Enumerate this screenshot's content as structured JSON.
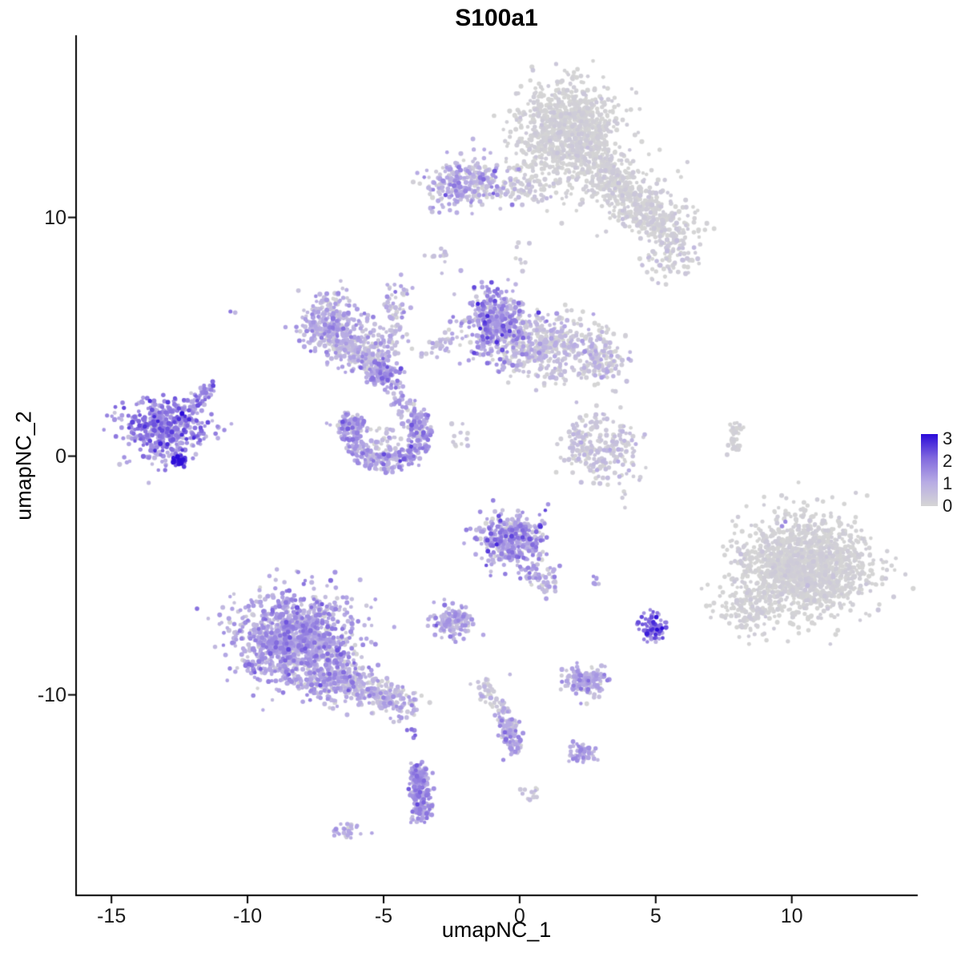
{
  "chart_data": {
    "type": "scatter",
    "title": "S100a1",
    "xlabel": "umapNC_1",
    "ylabel": "umapNC_2",
    "x_ticks": [
      -15,
      -10,
      -5,
      0,
      5,
      10
    ],
    "y_ticks": [
      10,
      0,
      -10
    ],
    "x_domain": [
      -16.3,
      14.6
    ],
    "y_domain": [
      -18.4,
      17.6
    ],
    "grid": false,
    "background": "#ffffff",
    "axis_color": "#000000",
    "point_color_scale": {
      "domain": [
        0,
        3
      ],
      "stops": [
        "#D5D5D5",
        "#B7ABE4",
        "#8169DE",
        "#2B0BD9"
      ]
    },
    "legend": {
      "position": "right",
      "ticks": [
        "3",
        "2",
        "1",
        "0"
      ]
    },
    "seed": 42,
    "clusters": [
      {
        "t": "g",
        "cx": 1.8,
        "cy": 13.8,
        "sx": 0.85,
        "sy": 0.9,
        "n": 850,
        "e": 0.05,
        "es": 0.13
      },
      {
        "t": "s",
        "x1": 2.5,
        "y1": 12.5,
        "x2": 4.3,
        "y2": 10.7,
        "j": 0.5,
        "n": 280,
        "e": 0.06,
        "es": 0.16
      },
      {
        "t": "g",
        "cx": 4.7,
        "cy": 10.2,
        "sx": 0.55,
        "sy": 0.5,
        "n": 150,
        "e": 0.06,
        "es": 0.16
      },
      {
        "t": "s",
        "x1": 4.9,
        "y1": 9.8,
        "x2": 6.1,
        "y2": 8.9,
        "j": 0.38,
        "n": 110,
        "e": 0.07,
        "es": 0.2
      },
      {
        "t": "g",
        "cx": 5.4,
        "cy": 8.1,
        "sx": 0.5,
        "sy": 0.45,
        "n": 60,
        "e": 0.1,
        "es": 0.3
      },
      {
        "t": "g",
        "cx": 3.0,
        "cy": 11.6,
        "sx": 1.2,
        "sy": 0.9,
        "n": 110,
        "e": 0.05,
        "es": 0.15
      },
      {
        "t": "g",
        "cx": 0.7,
        "cy": 12.4,
        "sx": 0.6,
        "sy": 0.7,
        "n": 70,
        "e": 0.05,
        "es": 0.12
      },
      {
        "t": "g",
        "cx": 6.3,
        "cy": 9.7,
        "sx": 0.4,
        "sy": 0.45,
        "n": 18,
        "e": 0.06,
        "es": 0.15
      },
      {
        "t": "g",
        "cx": -1.9,
        "cy": 11.4,
        "sx": 0.78,
        "sy": 0.5,
        "n": 300,
        "e": 0.7,
        "es": 0.55
      },
      {
        "t": "s",
        "x1": -0.6,
        "y1": 11.3,
        "x2": 1.1,
        "y2": 11.0,
        "j": 0.25,
        "n": 55,
        "e": 0.2,
        "es": 0.25
      },
      {
        "t": "g",
        "cx": -3.0,
        "cy": 8.4,
        "sx": 0.22,
        "sy": 0.3,
        "n": 11,
        "e": 0.5,
        "es": 0.3
      },
      {
        "t": "g",
        "cx": 0.0,
        "cy": 8.3,
        "sx": 0.14,
        "sy": 0.3,
        "n": 8,
        "e": 0.3,
        "es": 0.25
      },
      {
        "t": "g",
        "cx": -10.5,
        "cy": 6.1,
        "sx": 0.1,
        "sy": 0.1,
        "n": 2,
        "e": 1.4,
        "es": 0.3
      },
      {
        "t": "g",
        "cx": -7.0,
        "cy": 5.4,
        "sx": 0.58,
        "sy": 0.5,
        "n": 260,
        "e": 0.8,
        "es": 0.5
      },
      {
        "t": "g",
        "cx": -5.9,
        "cy": 4.4,
        "sx": 0.55,
        "sy": 0.45,
        "n": 210,
        "e": 0.6,
        "es": 0.45
      },
      {
        "t": "g",
        "cx": -5.0,
        "cy": 3.5,
        "sx": 0.32,
        "sy": 0.3,
        "n": 140,
        "e": 1.1,
        "es": 0.5
      },
      {
        "t": "s",
        "x1": -4.7,
        "y1": 4.2,
        "x2": -4.5,
        "y2": 7.3,
        "j": 0.24,
        "n": 90,
        "e": 0.55,
        "es": 0.4
      },
      {
        "t": "s",
        "x1": -7.4,
        "y1": 6.1,
        "x2": -6.5,
        "y2": 6.8,
        "j": 0.25,
        "n": 40,
        "e": 0.6,
        "es": 0.4
      },
      {
        "t": "s",
        "x1": -4.6,
        "y1": 2.9,
        "x2": -3.9,
        "y2": 1.2,
        "j": 0.24,
        "n": 60,
        "e": 0.9,
        "es": 0.5
      },
      {
        "t": "g",
        "cx": -0.9,
        "cy": 5.5,
        "sx": 0.62,
        "sy": 0.72,
        "n": 420,
        "e": 1.0,
        "es": 0.6
      },
      {
        "t": "g",
        "cx": 0.9,
        "cy": 4.6,
        "sx": 0.9,
        "sy": 0.62,
        "n": 430,
        "e": 0.32,
        "es": 0.38
      },
      {
        "t": "g",
        "cx": 3.0,
        "cy": 4.0,
        "sx": 0.5,
        "sy": 0.5,
        "n": 130,
        "e": 0.35,
        "es": 0.4
      },
      {
        "t": "s",
        "x1": -2.3,
        "y1": 5.0,
        "x2": -3.4,
        "y2": 4.3,
        "j": 0.22,
        "n": 26,
        "e": 0.5,
        "es": 0.35
      },
      {
        "t": "g",
        "cx": -13.1,
        "cy": 1.2,
        "sx": 0.78,
        "sy": 0.65,
        "n": 460,
        "e": 1.4,
        "es": 0.55
      },
      {
        "t": "s",
        "x1": -12.2,
        "y1": 2.0,
        "x2": -11.4,
        "y2": 2.8,
        "j": 0.22,
        "n": 50,
        "e": 1.2,
        "es": 0.5
      },
      {
        "t": "g",
        "cx": -12.5,
        "cy": -0.1,
        "sx": 0.16,
        "sy": 0.14,
        "n": 26,
        "e": 2.5,
        "es": 0.35
      },
      {
        "t": "a",
        "cx": -4.9,
        "cy": 1.0,
        "r1": 0.9,
        "r2": 1.7,
        "a1": 150,
        "a2": 395,
        "n": 360,
        "e": 1.05,
        "es": 0.5
      },
      {
        "t": "g",
        "cx": -6.2,
        "cy": 1.4,
        "sx": 0.3,
        "sy": 0.3,
        "n": 45,
        "e": 0.8,
        "es": 0.45
      },
      {
        "t": "g",
        "cx": -4.9,
        "cy": 0.6,
        "sx": 0.5,
        "sy": 0.4,
        "n": 50,
        "e": 0.6,
        "es": 0.4
      },
      {
        "t": "g",
        "cx": -2.1,
        "cy": 0.7,
        "sx": 0.3,
        "sy": 0.25,
        "n": 12,
        "e": 0.3,
        "es": 0.25
      },
      {
        "t": "g",
        "cx": 3.1,
        "cy": 0.3,
        "sx": 0.68,
        "sy": 0.8,
        "n": 200,
        "e": 0.25,
        "es": 0.3
      },
      {
        "t": "s",
        "x1": 2.2,
        "y1": 1.6,
        "x2": 2.0,
        "y2": -0.4,
        "j": 0.18,
        "n": 45,
        "e": 0.3,
        "es": 0.3
      },
      {
        "t": "s",
        "x1": 7.8,
        "y1": 0.2,
        "x2": 8.0,
        "y2": 1.3,
        "j": 0.13,
        "n": 40,
        "e": 0.05,
        "es": 0.1
      },
      {
        "t": "g",
        "cx": -0.3,
        "cy": -3.5,
        "sx": 0.62,
        "sy": 0.58,
        "n": 390,
        "e": 1.0,
        "es": 0.55
      },
      {
        "t": "s",
        "x1": 0.4,
        "y1": -4.6,
        "x2": 1.2,
        "y2": -5.6,
        "j": 0.26,
        "n": 60,
        "e": 0.75,
        "es": 0.45
      },
      {
        "t": "g",
        "cx": 2.8,
        "cy": -5.2,
        "sx": 0.13,
        "sy": 0.13,
        "n": 6,
        "e": 1.3,
        "es": 0.3
      },
      {
        "t": "g",
        "cx": -2.4,
        "cy": -6.9,
        "sx": 0.42,
        "sy": 0.3,
        "n": 140,
        "e": 0.85,
        "es": 0.5
      },
      {
        "t": "g",
        "cx": -8.3,
        "cy": -7.7,
        "sx": 1.05,
        "sy": 0.95,
        "n": 1250,
        "e": 0.95,
        "es": 0.5
      },
      {
        "t": "g",
        "cx": -6.7,
        "cy": -9.3,
        "sx": 0.6,
        "sy": 0.5,
        "n": 240,
        "e": 0.8,
        "es": 0.5
      },
      {
        "t": "s",
        "x1": -5.8,
        "y1": -9.7,
        "x2": -4.0,
        "y2": -10.5,
        "j": 0.35,
        "n": 200,
        "e": 0.6,
        "es": 0.45
      },
      {
        "t": "g",
        "cx": 10.5,
        "cy": -4.6,
        "sx": 1.15,
        "sy": 1.0,
        "n": 1500,
        "e": 0.04,
        "es": 0.12
      },
      {
        "t": "g",
        "cx": 8.3,
        "cy": -6.4,
        "sx": 0.55,
        "sy": 0.55,
        "n": 130,
        "e": 0.05,
        "es": 0.12
      },
      {
        "t": "g",
        "cx": 9.6,
        "cy": -2.8,
        "sx": 0.12,
        "sy": 0.12,
        "n": 2,
        "e": 1.4,
        "es": 0.2
      },
      {
        "t": "g",
        "cx": 4.9,
        "cy": -7.2,
        "sx": 0.24,
        "sy": 0.3,
        "n": 80,
        "e": 1.9,
        "es": 0.5
      },
      {
        "t": "g",
        "cx": 2.4,
        "cy": -9.4,
        "sx": 0.4,
        "sy": 0.3,
        "n": 150,
        "e": 0.9,
        "es": 0.45
      },
      {
        "t": "s",
        "x1": -1.4,
        "y1": -9.6,
        "x2": -0.5,
        "y2": -10.8,
        "j": 0.22,
        "n": 55,
        "e": 0.4,
        "es": 0.35
      },
      {
        "t": "s",
        "x1": -0.5,
        "y1": -10.9,
        "x2": -0.2,
        "y2": -12.3,
        "j": 0.22,
        "n": 110,
        "e": 0.85,
        "es": 0.5
      },
      {
        "t": "g",
        "cx": 2.3,
        "cy": -12.4,
        "sx": 0.28,
        "sy": 0.2,
        "n": 55,
        "e": 0.9,
        "es": 0.45
      },
      {
        "t": "g",
        "cx": -3.9,
        "cy": -11.6,
        "sx": 0.1,
        "sy": 0.12,
        "n": 6,
        "e": 1.7,
        "es": 0.3
      },
      {
        "t": "s",
        "x1": -3.7,
        "y1": -13.0,
        "x2": -3.6,
        "y2": -15.2,
        "j": 0.2,
        "n": 230,
        "e": 1.1,
        "es": 0.5
      },
      {
        "t": "g",
        "cx": 0.5,
        "cy": -14.1,
        "sx": 0.22,
        "sy": 0.15,
        "n": 12,
        "e": 0.4,
        "es": 0.35
      },
      {
        "t": "g",
        "cx": -6.3,
        "cy": -15.7,
        "sx": 0.3,
        "sy": 0.15,
        "n": 26,
        "e": 0.85,
        "es": 0.4
      }
    ]
  }
}
